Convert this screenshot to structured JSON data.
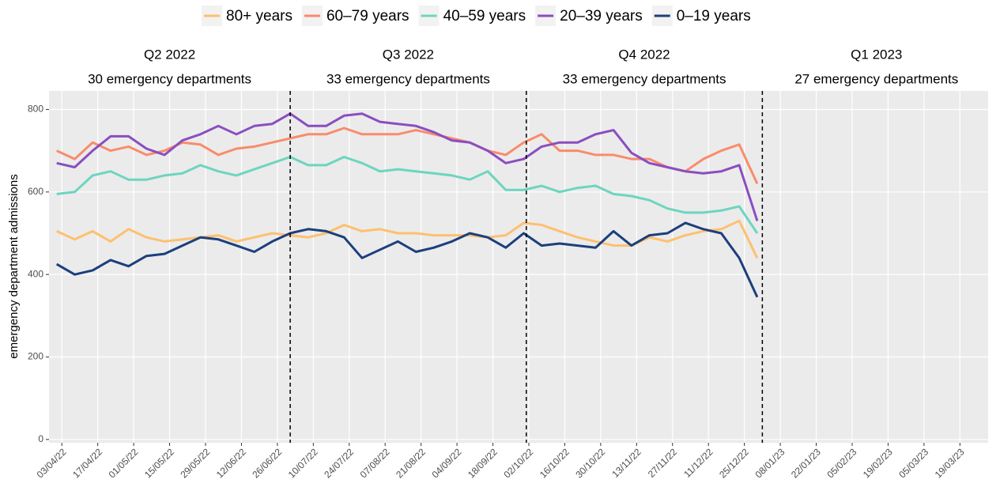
{
  "chart_data": {
    "type": "line",
    "y_label": "emergency department admissions",
    "x": [
      "2022-04-01",
      "2022-04-08",
      "2022-04-15",
      "2022-04-22",
      "2022-04-29",
      "2022-05-06",
      "2022-05-13",
      "2022-05-20",
      "2022-05-27",
      "2022-06-03",
      "2022-06-10",
      "2022-06-17",
      "2022-06-24",
      "2022-07-01",
      "2022-07-08",
      "2022-07-15",
      "2022-07-22",
      "2022-07-29",
      "2022-08-05",
      "2022-08-12",
      "2022-08-19",
      "2022-08-26",
      "2022-09-02",
      "2022-09-09",
      "2022-09-16",
      "2022-09-23",
      "2022-09-30",
      "2022-10-07",
      "2022-10-14",
      "2022-10-21",
      "2022-10-28",
      "2022-11-04",
      "2022-11-11",
      "2022-11-18",
      "2022-11-25",
      "2022-12-02",
      "2022-12-09",
      "2022-12-16",
      "2022-12-23",
      "2022-12-30"
    ],
    "series": [
      {
        "name": "80+ years",
        "color": "#fdc06f",
        "values": [
          505,
          485,
          505,
          480,
          510,
          490,
          480,
          485,
          490,
          495,
          480,
          490,
          500,
          495,
          490,
          500,
          520,
          505,
          510,
          500,
          500,
          495,
          495,
          495,
          490,
          495,
          525,
          520,
          505,
          490,
          480,
          470,
          470,
          490,
          480,
          495,
          505,
          510,
          530,
          440
        ]
      },
      {
        "name": "60–79 years",
        "color": "#f88c6c",
        "values": [
          700,
          680,
          720,
          700,
          710,
          690,
          700,
          720,
          715,
          690,
          705,
          710,
          720,
          730,
          740,
          740,
          755,
          740,
          740,
          740,
          750,
          740,
          730,
          720,
          700,
          690,
          720,
          740,
          700,
          700,
          690,
          690,
          680,
          680,
          660,
          650,
          680,
          700,
          715,
          620
        ]
      },
      {
        "name": "40–59 years",
        "color": "#6dd5bf",
        "values": [
          595,
          600,
          640,
          650,
          630,
          630,
          640,
          645,
          665,
          650,
          640,
          655,
          670,
          685,
          665,
          665,
          685,
          670,
          650,
          655,
          650,
          645,
          640,
          630,
          650,
          605,
          605,
          615,
          600,
          610,
          615,
          595,
          590,
          580,
          560,
          550,
          550,
          555,
          565,
          500
        ]
      },
      {
        "name": "20–39 years",
        "color": "#8a4ec0",
        "values": [
          670,
          660,
          700,
          735,
          735,
          705,
          690,
          725,
          740,
          760,
          740,
          760,
          765,
          790,
          760,
          760,
          785,
          790,
          770,
          765,
          760,
          745,
          725,
          720,
          700,
          670,
          680,
          710,
          720,
          720,
          740,
          750,
          695,
          670,
          660,
          650,
          645,
          650,
          665,
          530
        ]
      },
      {
        "name": "0–19 years",
        "color": "#1c3f7c",
        "values": [
          425,
          400,
          410,
          435,
          420,
          445,
          450,
          470,
          490,
          485,
          470,
          455,
          480,
          500,
          510,
          505,
          490,
          440,
          460,
          480,
          455,
          465,
          480,
          500,
          490,
          465,
          500,
          470,
          475,
          470,
          465,
          505,
          470,
          495,
          500,
          525,
          510,
          500,
          440,
          345
        ]
      }
    ],
    "xlim": [
      "2022-03-29",
      "2023-03-30"
    ],
    "xticks": [
      {
        "value": "2022-04-03",
        "label": "03/04/22"
      },
      {
        "value": "2022-04-17",
        "label": "17/04/22"
      },
      {
        "value": "2022-05-01",
        "label": "01/05/22"
      },
      {
        "value": "2022-05-15",
        "label": "15/05/22"
      },
      {
        "value": "2022-05-29",
        "label": "29/05/22"
      },
      {
        "value": "2022-06-12",
        "label": "12/06/22"
      },
      {
        "value": "2022-06-26",
        "label": "26/06/22"
      },
      {
        "value": "2022-07-10",
        "label": "10/07/22"
      },
      {
        "value": "2022-07-24",
        "label": "24/07/22"
      },
      {
        "value": "2022-08-07",
        "label": "07/08/22"
      },
      {
        "value": "2022-08-21",
        "label": "21/08/22"
      },
      {
        "value": "2022-09-04",
        "label": "04/09/22"
      },
      {
        "value": "2022-09-18",
        "label": "18/09/22"
      },
      {
        "value": "2022-10-02",
        "label": "02/10/22"
      },
      {
        "value": "2022-10-16",
        "label": "16/10/22"
      },
      {
        "value": "2022-10-30",
        "label": "30/10/22"
      },
      {
        "value": "2022-11-13",
        "label": "13/11/22"
      },
      {
        "value": "2022-11-27",
        "label": "27/11/22"
      },
      {
        "value": "2022-12-11",
        "label": "11/12/22"
      },
      {
        "value": "2022-12-25",
        "label": "25/12/22"
      },
      {
        "value": "2023-01-08",
        "label": "08/01/23"
      },
      {
        "value": "2023-01-22",
        "label": "22/01/23"
      },
      {
        "value": "2023-02-05",
        "label": "05/02/23"
      },
      {
        "value": "2023-02-19",
        "label": "19/02/23"
      },
      {
        "value": "2023-03-05",
        "label": "05/03/23"
      },
      {
        "value": "2023-03-19",
        "label": "19/03/23"
      }
    ],
    "ylim": [
      -8,
      845
    ],
    "yticks": [
      0,
      200,
      400,
      600,
      800
    ],
    "grid": true,
    "legend": "top",
    "vlines": [
      "2022-07-01",
      "2022-10-01",
      "2023-01-01"
    ],
    "quarters": [
      {
        "label": "Q2 2022",
        "sublabel": "30 emergency departments",
        "start": "2022-03-29",
        "end": "2022-07-01"
      },
      {
        "label": "Q3 2022",
        "sublabel": "33 emergency departments",
        "start": "2022-07-01",
        "end": "2022-10-01"
      },
      {
        "label": "Q4 2022",
        "sublabel": "33 emergency departments",
        "start": "2022-10-01",
        "end": "2023-01-01"
      },
      {
        "label": "Q1 2023",
        "sublabel": "27 emergency departments",
        "start": "2023-01-01",
        "end": "2023-03-31"
      }
    ]
  }
}
